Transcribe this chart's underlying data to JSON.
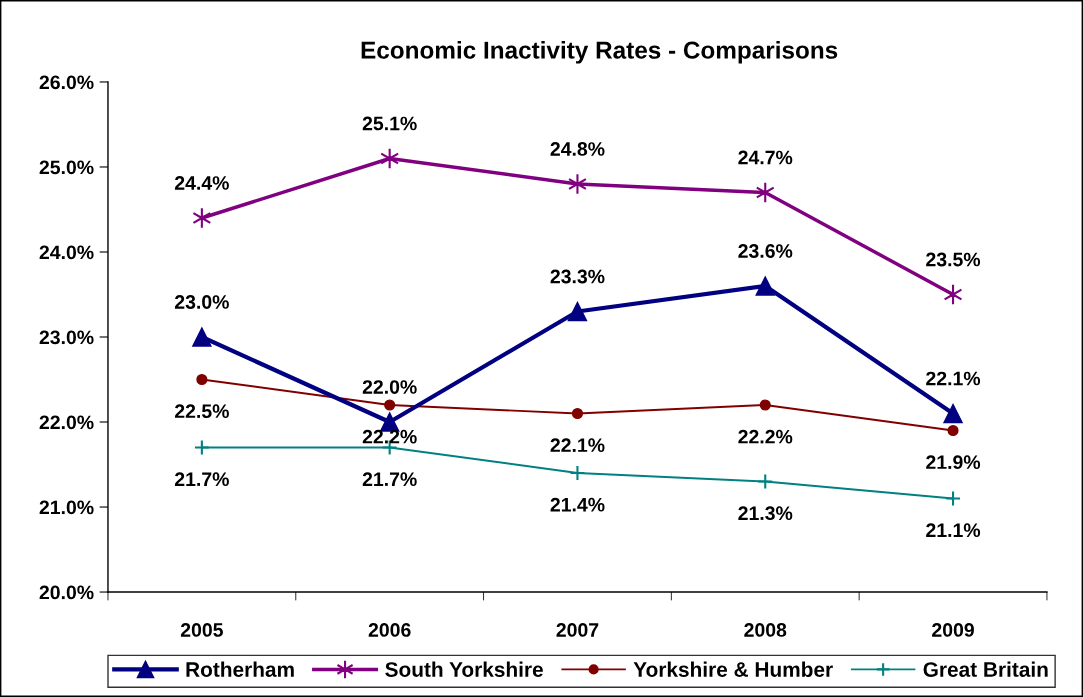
{
  "chart_data": {
    "type": "line",
    "title": "Economic Inactivity Rates - Comparisons",
    "categories": [
      "2005",
      "2006",
      "2007",
      "2008",
      "2009"
    ],
    "series": [
      {
        "name": "Rotherham",
        "color": "#000080",
        "marker": "triangle",
        "values": [
          23.0,
          22.0,
          23.3,
          23.6,
          22.1
        ],
        "value_labels": [
          "23.0%",
          "22.0%",
          "23.3%",
          "23.6%",
          "22.1%"
        ]
      },
      {
        "name": "South Yorkshire",
        "color": "#800080",
        "marker": "cross",
        "values": [
          24.4,
          25.1,
          24.8,
          24.7,
          23.5
        ],
        "value_labels": [
          "24.4%",
          "25.1%",
          "24.8%",
          "24.7%",
          "23.5%"
        ]
      },
      {
        "name": "Yorkshire & Humber",
        "color": "#800000",
        "marker": "circle",
        "values": [
          22.5,
          22.2,
          22.1,
          22.2,
          21.9
        ],
        "value_labels": [
          "22.5%",
          "22.2%",
          "22.1%",
          "22.2%",
          "21.9%"
        ]
      },
      {
        "name": "Great Britain",
        "color": "#008080",
        "marker": "cross",
        "values": [
          21.7,
          21.7,
          21.4,
          21.3,
          21.1
        ],
        "value_labels": [
          "21.7%",
          "21.7%",
          "21.4%",
          "21.3%",
          "21.1%"
        ]
      }
    ],
    "ylim": [
      20,
      26
    ],
    "yticks": [
      {
        "value": 20,
        "label": "20.0%"
      },
      {
        "value": 21,
        "label": "21.0%"
      },
      {
        "value": 22,
        "label": "22.0%"
      },
      {
        "value": 23,
        "label": "23.0%"
      },
      {
        "value": 24,
        "label": "24.0%"
      },
      {
        "value": 25,
        "label": "25.0%"
      },
      {
        "value": 26,
        "label": "26.0%"
      }
    ],
    "line_style": "solid",
    "legend": "bottom"
  }
}
